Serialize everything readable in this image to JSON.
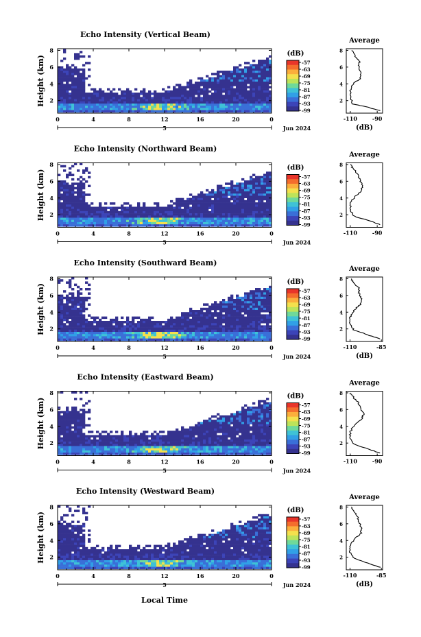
{
  "figure": {
    "ylabel": "Height (km)",
    "xlabel": "Local Time",
    "date_label": "Jun 2024",
    "day_label": "5",
    "unit_label": "(dB)",
    "average_title": "Average",
    "average_xlabel": "(dB)",
    "colorbar_ticks": [
      "-57",
      "-63",
      "-69",
      "-75",
      "-81",
      "-87",
      "-93",
      "-99"
    ],
    "colorbar_colors": [
      "#e8352a",
      "#f46d2d",
      "#fbae3c",
      "#f4e04d",
      "#bde35a",
      "#6fd99a",
      "#3fc2d6",
      "#31a0e6",
      "#3a6fd8",
      "#3c44b8",
      "#35328f"
    ]
  },
  "chart_data": [
    {
      "type": "heatmap",
      "title": "Echo Intensity (Vertical Beam)",
      "x_ticks": [
        "0",
        "4",
        "8",
        "12",
        "16",
        "20",
        "0"
      ],
      "y_ticks": [
        "2",
        "4",
        "6",
        "8"
      ],
      "xlim": [
        0,
        24
      ],
      "ylim": [
        0.5,
        8.2
      ],
      "average": {
        "x_ticks": [
          "-110",
          "-90"
        ],
        "xlim": [
          -113,
          -86
        ],
        "profile": [
          [
            -88,
            0.8
          ],
          [
            -97,
            1.2
          ],
          [
            -108,
            1.6
          ],
          [
            -110,
            2.4
          ],
          [
            -110,
            3.2
          ],
          [
            -108,
            4.0
          ],
          [
            -103,
            4.6
          ],
          [
            -102,
            5.2
          ],
          [
            -104,
            6.0
          ],
          [
            -103,
            6.6
          ],
          [
            -107,
            7.4
          ],
          [
            -109,
            8.0
          ]
        ]
      }
    },
    {
      "type": "heatmap",
      "title": "Echo Intensity (Northward Beam)",
      "x_ticks": [
        "0",
        "4",
        "8",
        "12",
        "16",
        "20",
        "0"
      ],
      "y_ticks": [
        "2",
        "4",
        "6",
        "8"
      ],
      "xlim": [
        0,
        24
      ],
      "ylim": [
        0.5,
        8.2
      ],
      "average": {
        "x_ticks": [
          "-110",
          "-90"
        ],
        "xlim": [
          -113,
          -86
        ],
        "profile": [
          [
            -88,
            0.8
          ],
          [
            -96,
            1.3
          ],
          [
            -107,
            1.8
          ],
          [
            -110,
            2.6
          ],
          [
            -110,
            3.4
          ],
          [
            -107,
            4.1
          ],
          [
            -102,
            4.8
          ],
          [
            -101,
            5.5
          ],
          [
            -103,
            6.2
          ],
          [
            -104,
            6.8
          ],
          [
            -108,
            7.5
          ],
          [
            -110,
            8.0
          ]
        ]
      }
    },
    {
      "type": "heatmap",
      "title": "Echo Intensity (Southward Beam)",
      "x_ticks": [
        "0",
        "4",
        "8",
        "12",
        "16",
        "20",
        "0"
      ],
      "y_ticks": [
        "2",
        "4",
        "6",
        "8"
      ],
      "xlim": [
        0,
        24
      ],
      "ylim": [
        0.5,
        8.2
      ],
      "average": {
        "x_ticks": [
          "-110",
          "-85"
        ],
        "xlim": [
          -113,
          -84
        ],
        "profile": [
          [
            -86,
            0.8
          ],
          [
            -96,
            1.3
          ],
          [
            -107,
            1.9
          ],
          [
            -110,
            2.6
          ],
          [
            -110,
            3.4
          ],
          [
            -107,
            4.2
          ],
          [
            -102,
            4.9
          ],
          [
            -101,
            5.6
          ],
          [
            -103,
            6.3
          ],
          [
            -103,
            6.9
          ],
          [
            -107,
            7.5
          ],
          [
            -109,
            8.0
          ]
        ]
      }
    },
    {
      "type": "heatmap",
      "title": "Echo Intensity (Eastward Beam)",
      "x_ticks": [
        "0",
        "4",
        "8",
        "12",
        "16",
        "20",
        "0"
      ],
      "y_ticks": [
        "2",
        "4",
        "6",
        "8"
      ],
      "xlim": [
        0,
        24
      ],
      "ylim": [
        0.5,
        8.2
      ],
      "average": {
        "x_ticks": [
          "-110",
          "-90"
        ],
        "xlim": [
          -113,
          -86
        ],
        "profile": [
          [
            -88,
            0.8
          ],
          [
            -97,
            1.3
          ],
          [
            -108,
            1.9
          ],
          [
            -110,
            2.6
          ],
          [
            -110,
            3.4
          ],
          [
            -106,
            4.3
          ],
          [
            -101,
            5.0
          ],
          [
            -100,
            5.6
          ],
          [
            -103,
            6.3
          ],
          [
            -104,
            6.9
          ],
          [
            -108,
            7.5
          ],
          [
            -110,
            8.0
          ]
        ]
      }
    },
    {
      "type": "heatmap",
      "title": "Echo Intensity (Westward Beam)",
      "x_ticks": [
        "0",
        "4",
        "8",
        "12",
        "16",
        "20",
        "0"
      ],
      "y_ticks": [
        "2",
        "4",
        "6",
        "8"
      ],
      "xlim": [
        0,
        24
      ],
      "ylim": [
        0.5,
        8.2
      ],
      "average": {
        "x_ticks": [
          "-110",
          "-85"
        ],
        "xlim": [
          -113,
          -84
        ],
        "profile": [
          [
            -86,
            0.8
          ],
          [
            -96,
            1.3
          ],
          [
            -107,
            1.9
          ],
          [
            -110,
            2.6
          ],
          [
            -110,
            3.4
          ],
          [
            -106,
            4.2
          ],
          [
            -101,
            4.9
          ],
          [
            -101,
            5.6
          ],
          [
            -103,
            6.3
          ],
          [
            -104,
            6.9
          ],
          [
            -107,
            7.5
          ],
          [
            -109,
            8.0
          ]
        ]
      }
    }
  ]
}
